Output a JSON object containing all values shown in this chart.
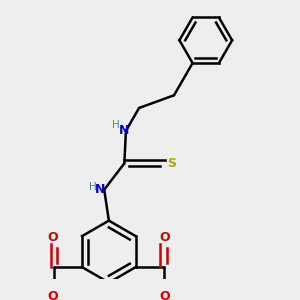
{
  "background_color": "#eeeeee",
  "bond_color": "#000000",
  "N_color": "#0000cc",
  "O_color": "#cc0000",
  "S_color": "#aaaa00",
  "H_color": "#448888",
  "line_width": 1.8,
  "figsize": [
    3.0,
    3.0
  ],
  "dpi": 100,
  "xlim": [
    -4.5,
    4.5
  ],
  "ylim": [
    -4.5,
    4.5
  ]
}
